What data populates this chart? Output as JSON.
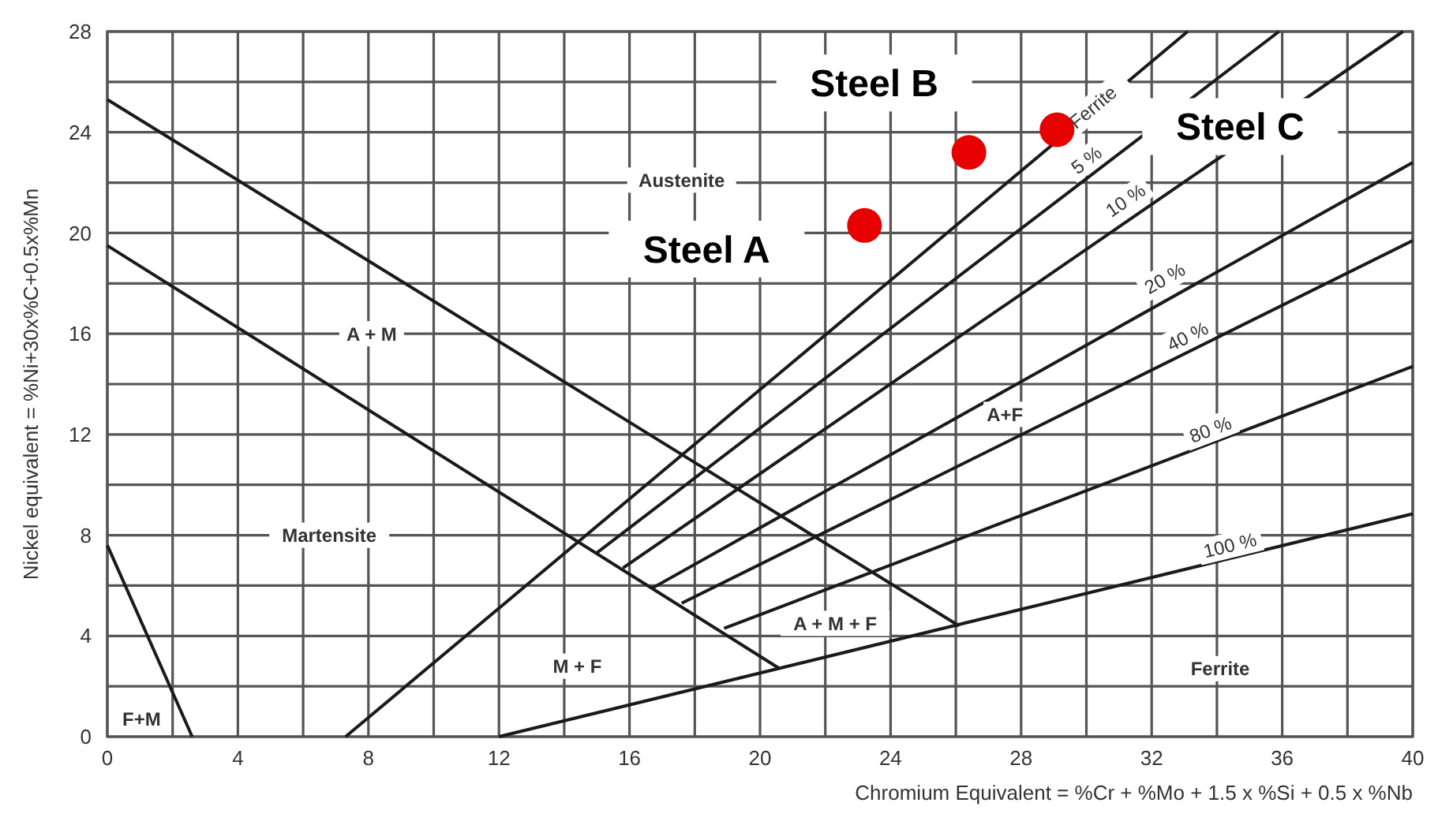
{
  "chart_data": {
    "type": "line",
    "xlabel": "Chromium Equivalent = %Cr + %Mo + 1.5 x %Si + 0.5 x %Nb",
    "ylabel": "Nickel equivalent = %Ni+30x%C+0.5x%Mn",
    "xlim": [
      0,
      40
    ],
    "ylim": [
      0,
      28
    ],
    "xticks": [
      0,
      {
        "value": 2,
        "label": null
      },
      4,
      {
        "value": 6,
        "label": null
      },
      8,
      {
        "value": 10,
        "label": null
      },
      12,
      {
        "value": 14,
        "label": null
      },
      16,
      {
        "value": 18,
        "label": null
      },
      20,
      {
        "value": 22,
        "label": null
      },
      24,
      {
        "value": 26,
        "label": null
      },
      28,
      {
        "value": 30,
        "label": null
      },
      32,
      {
        "value": 34,
        "label": null
      },
      36,
      {
        "value": 38,
        "label": null
      },
      40
    ],
    "yticks": [
      0,
      {
        "value": 2,
        "label": null
      },
      4,
      {
        "value": 6,
        "label": null
      },
      8,
      {
        "value": 10,
        "label": null
      },
      12,
      {
        "value": 14,
        "label": null
      },
      16,
      {
        "value": 18,
        "label": null
      },
      20,
      {
        "value": 22,
        "label": null
      },
      24,
      {
        "value": 26,
        "label": null
      },
      28
    ],
    "grid": true,
    "line_style": "solid",
    "series": [
      {
        "color": "#1a1a1a",
        "x": [
          0,
          2.6
        ],
        "values": [
          7.6,
          0
        ]
      },
      {
        "color": "#1a1a1a",
        "x": [
          0,
          26.1
        ],
        "values": [
          25.3,
          4.4
        ]
      },
      {
        "color": "#1a1a1a",
        "x": [
          0,
          20.6
        ],
        "values": [
          19.5,
          2.7
        ]
      },
      {
        "color": "#1a1a1a",
        "x": [
          7.3,
          33.1
        ],
        "values": [
          0,
          28
        ]
      },
      {
        "color": "#1a1a1a",
        "x": [
          15.0,
          35.9
        ],
        "values": [
          7.3,
          28
        ]
      },
      {
        "color": "#1a1a1a",
        "x": [
          15.8,
          39.7
        ],
        "values": [
          6.7,
          28
        ]
      },
      {
        "color": "#1a1a1a",
        "x": [
          16.7,
          40
        ],
        "values": [
          5.9,
          22.8
        ]
      },
      {
        "color": "#1a1a1a",
        "x": [
          17.6,
          40
        ],
        "values": [
          5.3,
          19.7
        ]
      },
      {
        "color": "#1a1a1a",
        "x": [
          18.9,
          40
        ],
        "values": [
          4.3,
          14.7
        ]
      },
      {
        "color": "#1a1a1a",
        "x": [
          12,
          40
        ],
        "values": [
          0,
          8.85
        ]
      },
      {
        "type": "scatter",
        "name": "Steel A",
        "color": "#e60000",
        "marker": "circle",
        "x": [
          23.2
        ],
        "values": [
          20.3
        ]
      },
      {
        "type": "scatter",
        "name": "Steel B",
        "color": "#e60000",
        "marker": "circle",
        "x": [
          26.4
        ],
        "values": [
          23.2
        ]
      },
      {
        "type": "scatter",
        "name": "Steel C",
        "color": "#e60000",
        "marker": "circle",
        "x": [
          29.1
        ],
        "values": [
          24.1
        ]
      }
    ],
    "annotations": [
      "Austenite",
      "A + M",
      "Martensite",
      "F+M",
      "M + F",
      "A + M + F",
      "A+F",
      "Ferrite",
      {
        "text": "Ferrite",
        "x": 30.2,
        "y": 25.0
      },
      {
        "text": "5 %",
        "x": 30.0,
        "y": 22.9
      },
      {
        "text": "10 %",
        "x": 31.2,
        "y": 21.3
      },
      {
        "text": "20 %",
        "x": 32.4,
        "y": 18.2
      },
      {
        "text": "40 %",
        "x": 33.1,
        "y": 15.9
      },
      {
        "text": "80 %",
        "x": 33.8,
        "y": 12.2
      },
      {
        "text": "100 %",
        "x": 34.4,
        "y": 7.6
      }
    ]
  }
}
